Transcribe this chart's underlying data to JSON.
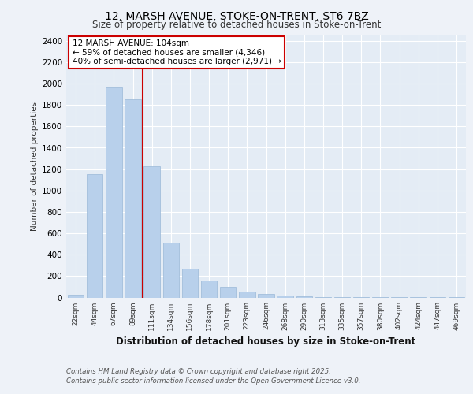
{
  "title1": "12, MARSH AVENUE, STOKE-ON-TRENT, ST6 7BZ",
  "title2": "Size of property relative to detached houses in Stoke-on-Trent",
  "xlabel": "Distribution of detached houses by size in Stoke-on-Trent",
  "ylabel": "Number of detached properties",
  "categories": [
    "22sqm",
    "44sqm",
    "67sqm",
    "89sqm",
    "111sqm",
    "134sqm",
    "156sqm",
    "178sqm",
    "201sqm",
    "223sqm",
    "246sqm",
    "268sqm",
    "290sqm",
    "313sqm",
    "335sqm",
    "357sqm",
    "380sqm",
    "402sqm",
    "424sqm",
    "447sqm",
    "469sqm"
  ],
  "values": [
    25,
    1155,
    1960,
    1850,
    1230,
    510,
    270,
    155,
    100,
    55,
    30,
    15,
    10,
    5,
    5,
    3,
    3,
    2,
    2,
    2,
    2
  ],
  "bar_color": "#b8d0eb",
  "bar_edge_color": "#9ab8d8",
  "annotation_text": "12 MARSH AVENUE: 104sqm\n← 59% of detached houses are smaller (4,346)\n40% of semi-detached houses are larger (2,971) →",
  "annotation_box_color": "#ffffff",
  "annotation_box_edge": "#cc0000",
  "vline_color": "#cc0000",
  "vline_x": 3.5,
  "ylim": [
    0,
    2450
  ],
  "yticks": [
    0,
    200,
    400,
    600,
    800,
    1000,
    1200,
    1400,
    1600,
    1800,
    2000,
    2200,
    2400
  ],
  "footer1": "Contains HM Land Registry data © Crown copyright and database right 2025.",
  "footer2": "Contains public sector information licensed under the Open Government Licence v3.0.",
  "background_color": "#eef2f8",
  "plot_bg_color": "#e4ecf5"
}
